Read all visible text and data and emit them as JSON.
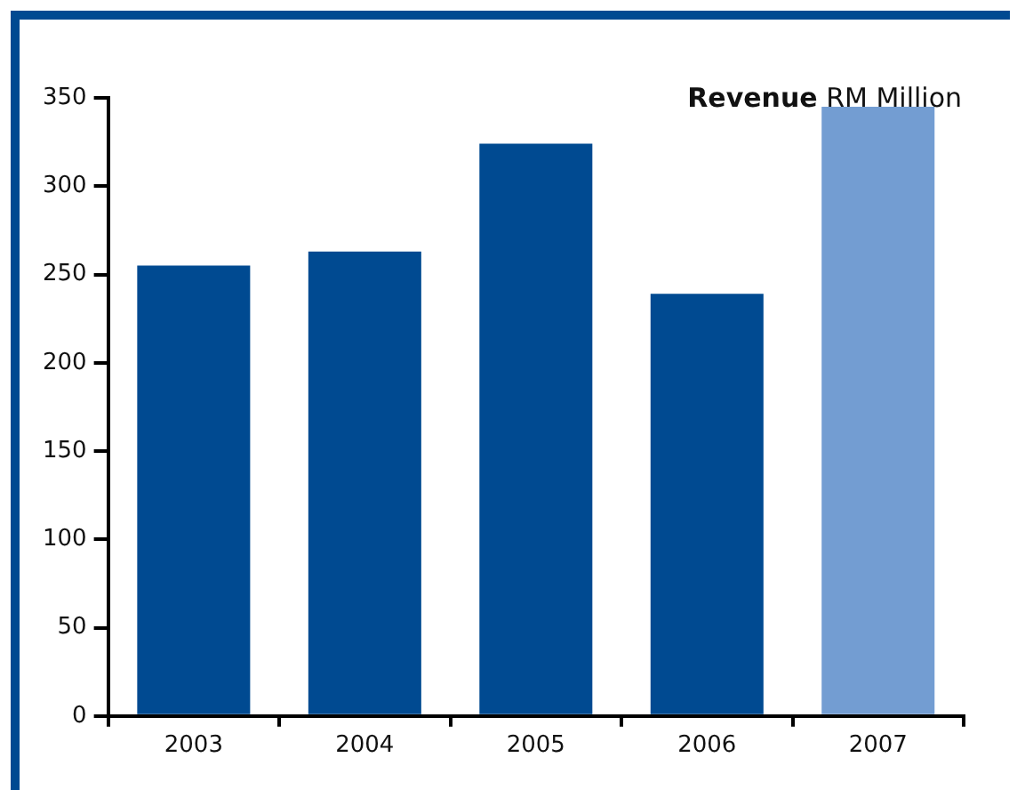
{
  "chart_data": {
    "type": "bar",
    "title": "Revenue",
    "subtitle": "RM Million",
    "categories": [
      "2003",
      "2004",
      "2005",
      "2006",
      "2007"
    ],
    "values": [
      255,
      263,
      324,
      239,
      345
    ],
    "colors": [
      "#004a91",
      "#004a91",
      "#004a91",
      "#004a91",
      "#739dd2"
    ],
    "ylim": [
      0,
      350
    ],
    "yticks": [
      0,
      50,
      100,
      150,
      200,
      250,
      300,
      350
    ],
    "grid": false,
    "legend": false
  }
}
